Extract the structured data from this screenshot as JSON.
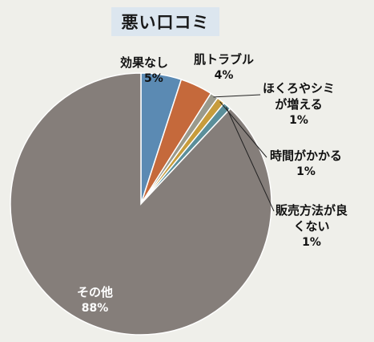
{
  "chart_data": {
    "type": "pie",
    "title": "悪い口コミ",
    "slices": [
      {
        "label": "効果なし",
        "value": 5,
        "value_label": "5%",
        "color": "#5b8ab3"
      },
      {
        "label": "肌トラブル",
        "value": 4,
        "value_label": "4%",
        "color": "#c5693b"
      },
      {
        "label": "ほくろやシミが増える",
        "value": 1,
        "value_label": "1%",
        "color": "#9a9a8d"
      },
      {
        "label": "時間がかかる",
        "value": 1,
        "value_label": "1%",
        "color": "#c79c3c"
      },
      {
        "label": "販売方法が良くない",
        "value": 1,
        "value_label": "1%",
        "color": "#5b8f9a"
      },
      {
        "label": "その他",
        "value": 88,
        "value_label": "88%",
        "color": "#857e7a"
      }
    ],
    "label_lines": {
      "slice1": [
        "ほくろやシミ",
        "が増える"
      ],
      "slice4": [
        "販売方法が良",
        "くない"
      ]
    },
    "legend": "none"
  }
}
